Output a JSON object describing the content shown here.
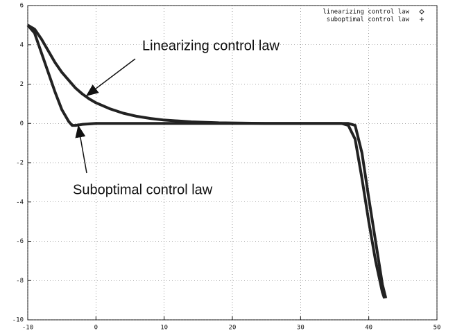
{
  "chart_data": {
    "type": "line",
    "annotations": [
      "Linearizing control law",
      "Suboptimal control law"
    ],
    "series": [
      {
        "name": "linearizing control law",
        "color": "#222222",
        "marker": "diamond",
        "x": [
          -10,
          -9,
          -8,
          -7,
          -6,
          -5,
          -4,
          -3,
          -2,
          -1,
          0,
          2,
          4,
          6,
          8,
          10,
          14,
          18,
          25,
          30,
          35,
          37,
          38,
          39,
          40,
          41,
          42,
          42.5
        ],
        "values": [
          5,
          4.8,
          4.3,
          3.7,
          3.1,
          2.6,
          2.2,
          1.8,
          1.5,
          1.25,
          1.05,
          0.75,
          0.52,
          0.36,
          0.25,
          0.17,
          0.08,
          0.03,
          0,
          0,
          0,
          0,
          -0.1,
          -1.5,
          -3.8,
          -6,
          -8.2,
          -8.9
        ]
      },
      {
        "name": "suboptimal control law",
        "color": "#222222",
        "marker": "plus",
        "x": [
          -10,
          -9,
          -8,
          -7,
          -6,
          -5,
          -4,
          -3.5,
          -3,
          -2,
          0,
          10,
          20,
          30,
          36,
          37,
          38,
          39,
          40,
          41,
          42,
          42.3
        ],
        "values": [
          5,
          4.6,
          3.6,
          2.6,
          1.6,
          0.7,
          0.1,
          -0.1,
          -0.1,
          -0.05,
          0,
          0,
          0,
          0,
          0,
          -0.1,
          -0.8,
          -2.8,
          -5,
          -7,
          -8.6,
          -8.9
        ]
      }
    ],
    "xlim": [
      -10,
      50
    ],
    "xticks": [
      -10,
      0,
      10,
      20,
      30,
      40,
      50
    ],
    "ylim": [
      -10,
      6
    ],
    "yticks": [
      -10,
      -8,
      -6,
      -4,
      -2,
      0,
      2,
      4,
      6
    ],
    "grid": true,
    "legend": "upper right"
  }
}
